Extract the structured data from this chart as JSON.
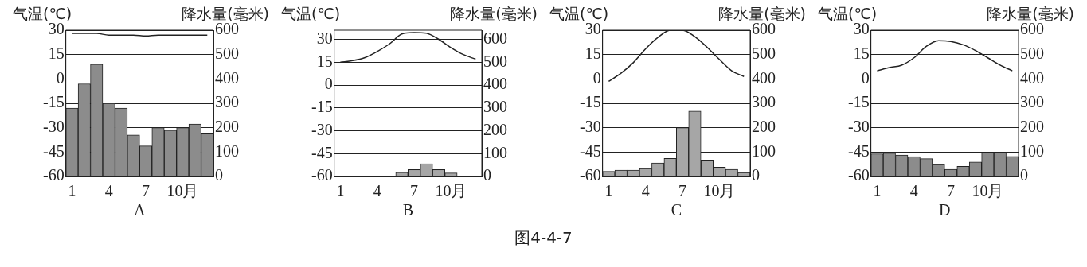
{
  "chart_data": [
    {
      "type": "bar",
      "ylabel": "气温(℃)",
      "y2label": "降水量(毫米)",
      "xlabel": "A",
      "categories": [
        "1",
        null,
        null,
        "4",
        null,
        null,
        "7",
        null,
        null,
        "10月",
        null,
        null
      ],
      "series": [
        {
          "axis": "y2",
          "color": "#8c8c8c",
          "values": [
            280,
            380,
            460,
            300,
            280,
            170,
            125,
            200,
            190,
            200,
            215,
            175
          ]
        },
        {
          "type": "line",
          "color": "#222222",
          "values": [
            28,
            28,
            28,
            27,
            27,
            27,
            26.5,
            27,
            27,
            27,
            27,
            27
          ]
        }
      ],
      "ylim": [
        -60,
        30
      ],
      "yticks": [
        30,
        15,
        0,
        -15,
        -30,
        -45,
        -60
      ],
      "y2lim": [
        0,
        600
      ],
      "y2ticks": [
        600,
        500,
        400,
        300,
        200,
        100,
        0
      ],
      "grid": "y",
      "legend": false,
      "marker": "none",
      "line_style": "solid"
    },
    {
      "type": "bar",
      "ylabel": "气温(℃)",
      "y2label": "降水量(毫米)",
      "xlabel": "B",
      "categories": [
        "1",
        null,
        null,
        "4",
        null,
        null,
        "7",
        null,
        null,
        "10月",
        null,
        null
      ],
      "series": [
        {
          "axis": "y2",
          "color": "#a6a6a6",
          "values": [
            0,
            0,
            0,
            0,
            0,
            18,
            30,
            55,
            30,
            15,
            0,
            0
          ]
        },
        {
          "type": "line",
          "color": "#222222",
          "values": [
            15,
            16,
            18,
            22,
            27,
            33.5,
            34.5,
            34,
            30,
            24.5,
            20,
            17
          ]
        }
      ],
      "ylim": [
        -60,
        36
      ],
      "yticks": [
        30,
        15,
        0,
        -15,
        -30,
        -45,
        -60
      ],
      "y2lim": [
        0,
        640
      ],
      "y2ticks": [
        600,
        500,
        400,
        300,
        200,
        100,
        0
      ],
      "grid": "y",
      "legend": false,
      "marker": "none",
      "line_style": "solid"
    },
    {
      "type": "bar",
      "ylabel": "气温(℃)",
      "y2label": "降水量(毫米)",
      "xlabel": "C",
      "categories": [
        "1",
        null,
        null,
        "4",
        null,
        null,
        "7",
        null,
        null,
        "10月",
        null,
        null
      ],
      "series": [
        {
          "axis": "y2",
          "color": "#a6a6a6",
          "values": [
            21,
            26,
            26,
            32,
            55,
            74,
            200,
            268,
            67,
            38,
            29,
            16
          ]
        },
        {
          "type": "line",
          "color": "#222222",
          "values": [
            -1.5,
            3.5,
            10,
            18.5,
            25.5,
            30,
            30,
            26,
            19.5,
            12,
            5,
            1.5
          ]
        }
      ],
      "ylim": [
        -60,
        30
      ],
      "yticks": [
        30,
        15,
        0,
        -15,
        -30,
        -45,
        -60
      ],
      "y2lim": [
        0,
        600
      ],
      "y2ticks": [
        600,
        500,
        400,
        300,
        200,
        100,
        0
      ],
      "grid": "y",
      "legend": false,
      "marker": "none",
      "line_style": "solid"
    },
    {
      "type": "bar",
      "ylabel": "气温(℃)",
      "y2label": "降水量(毫米)",
      "xlabel": "D",
      "categories": [
        "1",
        null,
        null,
        "4",
        null,
        null,
        "7",
        null,
        null,
        "10月",
        null,
        null
      ],
      "series": [
        {
          "axis": "y2",
          "color": "#8c8c8c",
          "values": [
            93,
            96,
            88,
            81,
            73,
            49,
            29,
            41,
            59,
            98,
            98,
            82
          ]
        },
        {
          "type": "line",
          "color": "#222222",
          "values": [
            5,
            7,
            8.5,
            13,
            20,
            23.5,
            23,
            21,
            17.5,
            13,
            8.5,
            5
          ]
        }
      ],
      "ylim": [
        -60,
        30
      ],
      "yticks": [
        30,
        15,
        0,
        -15,
        -30,
        -45,
        -60
      ],
      "y2lim": [
        0,
        600
      ],
      "y2ticks": [
        600,
        500,
        400,
        300,
        200,
        100,
        0
      ],
      "grid": "y",
      "legend": false,
      "marker": "none",
      "line_style": "solid",
      "annotations": [
        "图4-4-7"
      ]
    }
  ]
}
